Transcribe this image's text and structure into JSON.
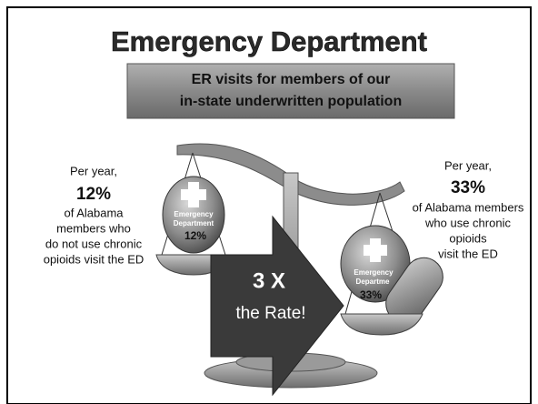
{
  "title": "Emergency Department",
  "banner": {
    "lines": [
      "ER visits for members of our",
      "in-state underwritten population"
    ]
  },
  "left": {
    "intro": "Per year,",
    "percent": "12%",
    "lines": [
      "of Alabama",
      "members who",
      "do not use chronic",
      "opioids visit the ED"
    ]
  },
  "right": {
    "intro": "Per year,",
    "percent": "33%",
    "lines": [
      "of Alabama members",
      "who use chronic",
      "opioids",
      "visit the ED"
    ]
  },
  "left_badge": {
    "lines": [
      "Emergency",
      "Department"
    ],
    "percent": "12%"
  },
  "right_badge": {
    "lines": [
      "Emergency",
      "Departme"
    ],
    "percent": "33%"
  },
  "arrow": {
    "big": "3 X",
    "small": "the Rate!"
  }
}
